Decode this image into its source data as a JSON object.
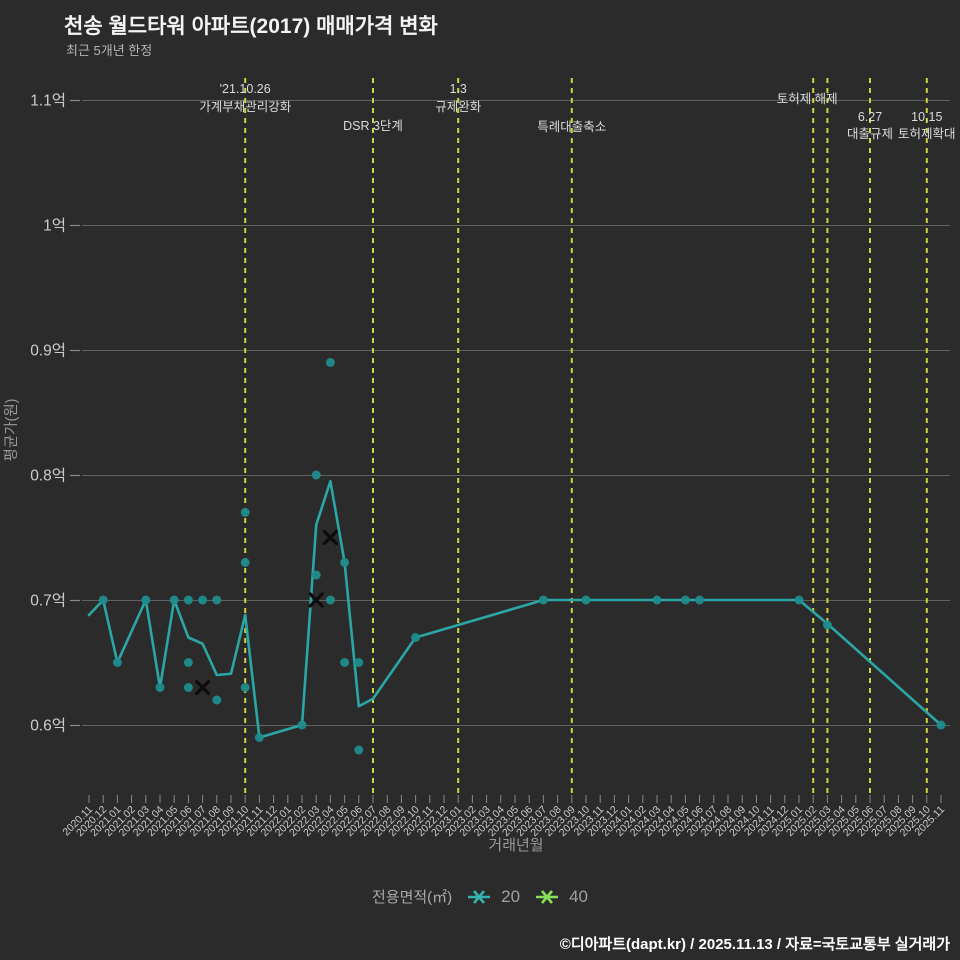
{
  "title": "천송 월드타워 아파트(2017) 매매가격 변화",
  "subtitle": "최근 5개년 한정",
  "footer": "©디아파트(dapt.kr) / 2025.11.13 / 자료=국토교통부 실거래가",
  "legend": {
    "title": "전용면적(㎡)",
    "items": [
      {
        "label": "20",
        "color": "#35b3ae"
      },
      {
        "label": "40",
        "color": "#85df58"
      }
    ]
  },
  "colors": {
    "background": "#2b2b2b",
    "grid": "#606060",
    "tick": "#8a8a8a",
    "axis_text": "#cccccc",
    "axis_title": "#999999",
    "event_line": "#d0d23f",
    "event_text": "#dcdcdc",
    "series_20_line": "#2ba6a6",
    "series_20_point": "#1f8c8c",
    "cancelled_marker": "#0c0c0c"
  },
  "chart_data": {
    "type": "line",
    "title": "천송 월드타워 아파트(2017) 매매가격 변화",
    "xlabel": "거래년월",
    "ylabel": "평균가(원)",
    "grid": true,
    "legend_position": "bottom",
    "y_axis": {
      "tick_labels": [
        "1.1억",
        "1억",
        "0.9억",
        "0.8억",
        "0.7억",
        "0.6억"
      ],
      "tick_values": [
        1.1,
        1.0,
        0.9,
        0.8,
        0.7,
        0.6
      ],
      "unit": "억원"
    },
    "x_axis": {
      "categories": [
        "2020.11",
        "2020.12",
        "2021.01",
        "2021.02",
        "2021.03",
        "2021.04",
        "2021.05",
        "2021.06",
        "2021.07",
        "2021.08",
        "2021.09",
        "2021.10",
        "2021.11",
        "2021.12",
        "2022.01",
        "2022.02",
        "2022.03",
        "2022.04",
        "2022.05",
        "2022.06",
        "2022.07",
        "2022.08",
        "2022.09",
        "2022.10",
        "2022.11",
        "2022.12",
        "2023.01",
        "2023.02",
        "2023.03",
        "2023.04",
        "2023.05",
        "2023.06",
        "2023.07",
        "2023.08",
        "2023.09",
        "2023.10",
        "2023.11",
        "2023.12",
        "2024.01",
        "2024.02",
        "2024.03",
        "2024.04",
        "2024.05",
        "2024.06",
        "2024.07",
        "2024.08",
        "2024.09",
        "2024.10",
        "2024.11",
        "2024.12",
        "2025.01",
        "2025.02",
        "2025.03",
        "2025.04",
        "2025.05",
        "2025.06",
        "2025.07",
        "2025.08",
        "2025.09",
        "2025.10",
        "2025.11"
      ]
    },
    "series": [
      {
        "name": "20",
        "marker": "crossRot",
        "line_points": [
          [
            "2020.11",
            0.688
          ],
          [
            "2020.12",
            0.7
          ],
          [
            "2021.01",
            0.65
          ],
          [
            "2021.03",
            0.7
          ],
          [
            "2021.04",
            0.63
          ],
          [
            "2021.05",
            0.7
          ],
          [
            "2021.06",
            0.67
          ],
          [
            "2021.07",
            0.665
          ],
          [
            "2021.08",
            0.64
          ],
          [
            "2021.09",
            0.641
          ],
          [
            "2021.10",
            0.688
          ],
          [
            "2021.11",
            0.59
          ],
          [
            "2022.02",
            0.6
          ],
          [
            "2022.03",
            0.76
          ],
          [
            "2022.04",
            0.795
          ],
          [
            "2022.05",
            0.73
          ],
          [
            "2022.06",
            0.615
          ],
          [
            "2022.07",
            0.621
          ],
          [
            "2022.10",
            0.67
          ],
          [
            "2023.07",
            0.7
          ],
          [
            "2025.01",
            0.7
          ],
          [
            "2025.03",
            0.681
          ],
          [
            "2025.11",
            0.6
          ]
        ],
        "transaction_points": [
          [
            "2020.12",
            0.7
          ],
          [
            "2021.01",
            0.65
          ],
          [
            "2021.03",
            0.7
          ],
          [
            "2021.04",
            0.63
          ],
          [
            "2021.05",
            0.7
          ],
          [
            "2021.06",
            0.7
          ],
          [
            "2021.06",
            0.65
          ],
          [
            "2021.06",
            0.63
          ],
          [
            "2021.07",
            0.7
          ],
          [
            "2021.08",
            0.7
          ],
          [
            "2021.08",
            0.62
          ],
          [
            "2021.10",
            0.77
          ],
          [
            "2021.10",
            0.73
          ],
          [
            "2021.10",
            0.63
          ],
          [
            "2021.11",
            0.59
          ],
          [
            "2022.02",
            0.6
          ],
          [
            "2022.03",
            0.8
          ],
          [
            "2022.03",
            0.72
          ],
          [
            "2022.04",
            0.89
          ],
          [
            "2022.04",
            0.7
          ],
          [
            "2022.05",
            0.73
          ],
          [
            "2022.05",
            0.65
          ],
          [
            "2022.06",
            0.65
          ],
          [
            "2022.06",
            0.58
          ],
          [
            "2022.10",
            0.67
          ],
          [
            "2023.07",
            0.7
          ],
          [
            "2023.10",
            0.7
          ],
          [
            "2024.03",
            0.7
          ],
          [
            "2024.05",
            0.7
          ],
          [
            "2024.06",
            0.7
          ],
          [
            "2025.01",
            0.7
          ],
          [
            "2025.03",
            0.68
          ],
          [
            "2025.11",
            0.6
          ]
        ]
      },
      {
        "name": "40",
        "marker": "crossRot",
        "line_points": [],
        "transaction_points": []
      }
    ],
    "cancelled_markers": [
      [
        "2021.07",
        0.63
      ],
      [
        "2022.03",
        0.7
      ],
      [
        "2022.04",
        0.75
      ]
    ],
    "events": [
      {
        "months": [
          "2021.10"
        ],
        "dx": 0,
        "labels": [
          {
            "text": "'21.10.26",
            "y": 93
          },
          {
            "text": "가계부채관리강화",
            "y": 111
          }
        ]
      },
      {
        "months": [
          "2022.07"
        ],
        "dx": 0,
        "labels": [
          {
            "text": "DSR 3단계",
            "y": 130
          }
        ]
      },
      {
        "months": [
          "2023.01"
        ],
        "dx": 0,
        "labels": [
          {
            "text": "1.3",
            "y": 93
          },
          {
            "text": "규제완화",
            "y": 111
          }
        ]
      },
      {
        "months": [
          "2023.09"
        ],
        "dx": 0,
        "labels": [
          {
            "text": "특례대출축소",
            "y": 131
          }
        ]
      },
      {
        "months": [
          "2025.02",
          "2025.03"
        ],
        "dx": -6,
        "labels": [
          {
            "text": "토허제 해제",
            "y": 103
          }
        ]
      },
      {
        "months": [
          "2025.06"
        ],
        "dx": 0,
        "labels": [
          {
            "text": "6.27",
            "y": 121
          },
          {
            "text": "대출규제",
            "y": 138
          }
        ]
      },
      {
        "months": [
          "2025.10"
        ],
        "dx": 0,
        "labels": [
          {
            "text": "10.15",
            "y": 121
          },
          {
            "text": "토허제확대",
            "y": 138
          }
        ]
      }
    ]
  }
}
